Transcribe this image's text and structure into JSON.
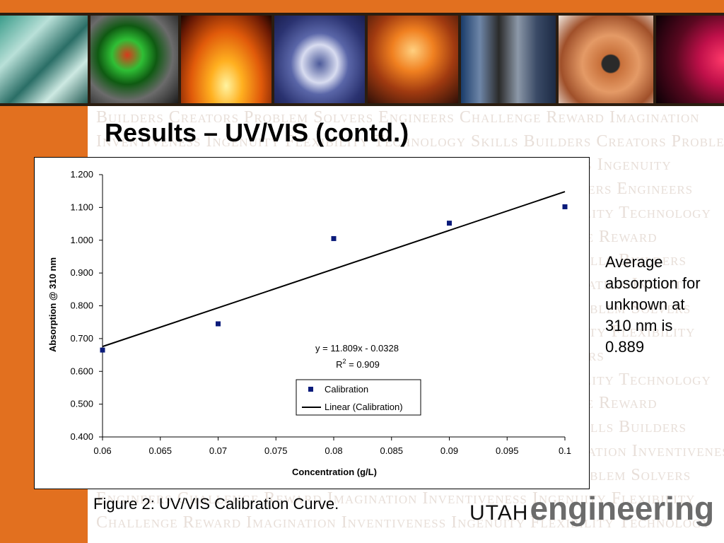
{
  "slide": {
    "title": "Results – UV/VIS (contd.)",
    "watermark_lines": [
      "Builders Creators Problem Solvers Engineers Challenge Reward Imagination",
      "Inventiveness Ingenuity Flexibility Technology Skills Builders Creators Problem",
      "Solvers Engineers Challenge Reward Imagination Inventiveness Ingenuity",
      "Flexibility Technology Skills Builders Creators Problem Solvers Engineers",
      "Challenge Reward Imagination Inventiveness Ingenuity Flexibility Technology",
      "Skills Builders Creators Problem Solvers Engineers Challenge Reward",
      "Imagination Inventiveness Ingenuity Flexibility Technology Skills Builders",
      "Creators Problem Solvers Engineers Challenge Reward Imagination Invent",
      "Ingenuity Flexibility Technology Skills Builders Creators Problem Solvers",
      "Engineers Challenge Reward Imagination Inventiveness Ingenuity Flexibility",
      "Technology Skills Builders Creators Problem Solvers Engineers",
      "Challenge Reward Imagination Inventiveness Ingenuity Flexibility Technology",
      "Skills Builders Creators Problem Solvers Engineers Challenge Reward",
      "Imagination Inventiveness Ingenuity Flexibility Technology Skills Builders",
      "Creators Problem Solvers Engineers Challenge Reward Imagination Inventiveness",
      "Ingenuity Flexibility Technology Skills Builders Creators Problem Solvers",
      "Engineers Challenge Reward Imagination Inventiveness Ingenuity Flexibility",
      "Challenge Reward Imagination Inventiveness Ingenuity Flexibility Technology"
    ],
    "note": "Average absorption for unknown at 310 nm is 0.889",
    "caption": "Figure 2:  UV/VIS Calibration Curve.",
    "logo": {
      "utah": "UTAH",
      "engineering": "engineering"
    },
    "colors": {
      "accent": "#e2701f",
      "series": "#0a1a7a"
    }
  },
  "chart_data": {
    "type": "scatter",
    "xlabel": "Concentration (g/L)",
    "ylabel": "Absorption @ 310 nm",
    "xlim": [
      0.06,
      0.1
    ],
    "ylim": [
      0.4,
      1.2
    ],
    "x_ticks": [
      "0.06",
      "0.065",
      "0.07",
      "0.075",
      "0.08",
      "0.085",
      "0.09",
      "0.095",
      "0.1"
    ],
    "y_ticks": [
      "1.200",
      "1.100",
      "1.000",
      "0.900",
      "0.800",
      "0.700",
      "0.600",
      "0.500",
      "0.400"
    ],
    "series": [
      {
        "name": "Calibration",
        "points": [
          {
            "x": 0.06,
            "y": 0.665
          },
          {
            "x": 0.07,
            "y": 0.745
          },
          {
            "x": 0.08,
            "y": 1.005
          },
          {
            "x": 0.09,
            "y": 1.052
          },
          {
            "x": 0.1,
            "y": 1.102
          }
        ]
      }
    ],
    "trendline": {
      "name": "Linear (Calibration)",
      "slope": 11.809,
      "intercept": -0.0328,
      "equation": "y = 11.809x - 0.0328",
      "r2_label": "R",
      "r2_sup": "2",
      "r2_value": " = 0.909"
    },
    "legend": {
      "position": "bottom-center",
      "entries": [
        "Calibration",
        "Linear (Calibration)"
      ]
    },
    "grid": false
  }
}
